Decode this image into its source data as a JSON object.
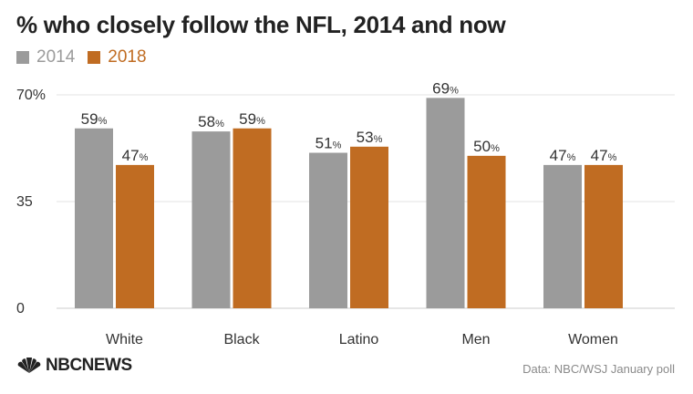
{
  "title": "% who closely follow the NFL, 2014 and now",
  "source": "Data: NBC/WSJ January poll",
  "logo_text": "NBCNEWS",
  "colors": {
    "s2014": "#9b9b9b",
    "s2018": "#c06c22",
    "grid": "#e3e3e3",
    "axis": "#cccccc",
    "text": "#333333"
  },
  "chart_data": {
    "type": "bar",
    "categories": [
      "White",
      "Black",
      "Latino",
      "Men",
      "Women"
    ],
    "series": [
      {
        "name": "2014",
        "values": [
          59,
          58,
          51,
          69,
          47
        ]
      },
      {
        "name": "2018",
        "values": [
          47,
          59,
          53,
          50,
          47
        ]
      }
    ],
    "y_ticks": [
      "70%",
      "35",
      "0"
    ],
    "y_tick_values": [
      70,
      35,
      0
    ],
    "ylim": [
      0,
      70
    ],
    "value_suffix": "%",
    "legend_position": "top-left",
    "grid": true
  }
}
